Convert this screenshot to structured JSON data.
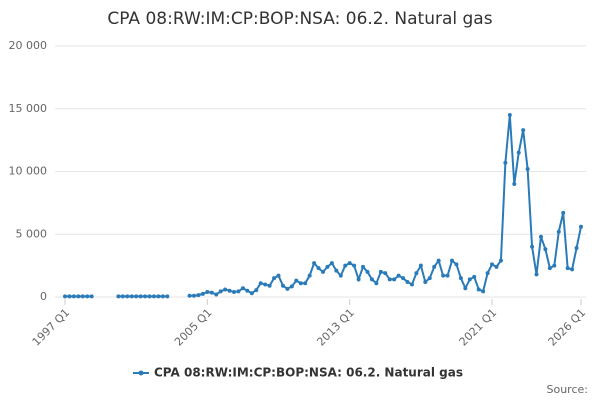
{
  "chart_data": {
    "type": "line",
    "title": "CPA 08:RW:IM:CP:BOP:NSA: 06.2. Natural gas",
    "source": "Source:",
    "categories": [
      "1997 Q1",
      null,
      null,
      null,
      null,
      null,
      null,
      null,
      null,
      null,
      null,
      null,
      null,
      null,
      null,
      null,
      null,
      null,
      null,
      null,
      null,
      null,
      null,
      null,
      null,
      null,
      null,
      null,
      null,
      null,
      null,
      null,
      "2005 Q1",
      null,
      null,
      null,
      null,
      null,
      null,
      null,
      null,
      null,
      null,
      null,
      null,
      null,
      null,
      null,
      null,
      null,
      null,
      null,
      null,
      null,
      null,
      null,
      null,
      null,
      null,
      null,
      null,
      null,
      null,
      null,
      "2013 Q1",
      null,
      null,
      null,
      null,
      null,
      null,
      null,
      null,
      null,
      null,
      null,
      null,
      null,
      null,
      null,
      null,
      null,
      null,
      null,
      null,
      null,
      null,
      null,
      null,
      null,
      null,
      null,
      null,
      null,
      null,
      null,
      "2021 Q1",
      null,
      null,
      null,
      null,
      null,
      null,
      null,
      null,
      null,
      null,
      null,
      null,
      null,
      null,
      null,
      null,
      null,
      null,
      null,
      "2026 Q1"
    ],
    "series": [
      {
        "name": "CPA 08:RW:IM:CP:BOP:NSA: 06.2. Natural gas",
        "color": "#2b7bb9",
        "values": [
          50,
          50,
          50,
          50,
          50,
          50,
          50,
          null,
          null,
          null,
          null,
          null,
          50,
          50,
          50,
          50,
          50,
          50,
          50,
          50,
          50,
          50,
          50,
          50,
          null,
          null,
          null,
          null,
          100,
          100,
          150,
          250,
          400,
          350,
          200,
          450,
          600,
          500,
          400,
          450,
          700,
          500,
          300,
          550,
          1100,
          1000,
          900,
          1500,
          1700,
          900,
          650,
          850,
          1300,
          1100,
          1100,
          1700,
          2700,
          2300,
          2000,
          2400,
          2700,
          2100,
          1700,
          2500,
          2700,
          2500,
          1400,
          2400,
          2000,
          1400,
          1100,
          2000,
          1900,
          1400,
          1400,
          1700,
          1500,
          1200,
          1000,
          1900,
          2500,
          1200,
          1500,
          2400,
          2900,
          1700,
          1700,
          2900,
          2600,
          1500,
          700,
          1400,
          1600,
          600,
          450,
          1900,
          2600,
          2400,
          2900,
          10700,
          14500,
          9000,
          11500,
          13300,
          10200,
          4000,
          1800,
          4800,
          3800,
          2300,
          2500,
          5200,
          6700,
          2300,
          2200,
          3900,
          5600
        ]
      }
    ],
    "ylim": [
      0,
      20000
    ],
    "yticks": [
      0,
      {
        "value": 5000,
        "label": "5 000"
      },
      {
        "value": 10000,
        "label": "10 000"
      },
      {
        "value": 15000,
        "label": "15 000"
      },
      {
        "value": 20000,
        "label": "20 000"
      }
    ],
    "grid": true
  }
}
